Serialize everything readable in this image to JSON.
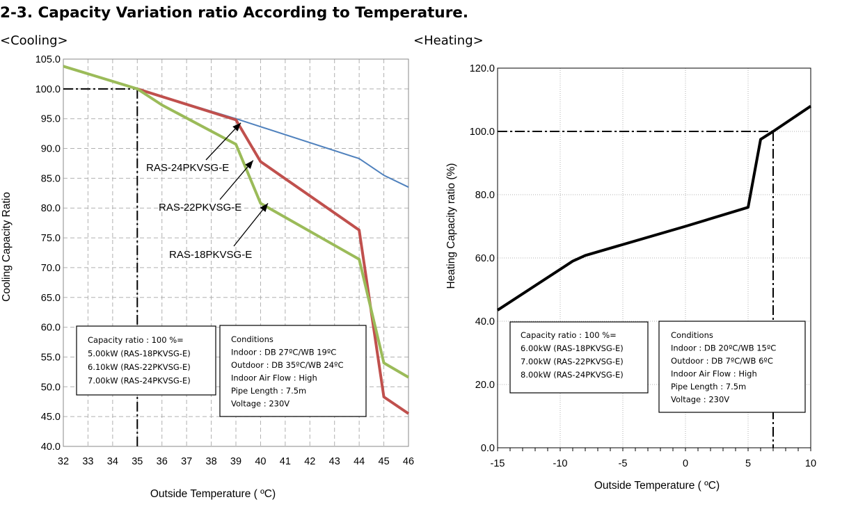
{
  "header": {
    "title": "2-3. Capacity Variation ratio According to Temperature.",
    "cooling_label": "<Cooling>",
    "heating_label": "<Heating>"
  },
  "chart_data": [
    {
      "type": "line",
      "title": "<Cooling>",
      "xlabel": "Outside Temperature ( ºC)",
      "ylabel": "Cooling Capacity Ratio",
      "xlim": [
        32,
        46
      ],
      "ylim": [
        40,
        105
      ],
      "x_ticks": [
        32,
        33,
        34,
        35,
        36,
        37,
        38,
        39,
        40,
        41,
        42,
        43,
        44,
        45,
        46
      ],
      "y_ticks": [
        40.0,
        45.0,
        50.0,
        55.0,
        60.0,
        65.0,
        70.0,
        75.0,
        80.0,
        85.0,
        90.0,
        95.0,
        100.0,
        105.0
      ],
      "y_tick_labels": [
        "40.0",
        "45.0",
        "50.0",
        "55.0",
        "60.0",
        "65.0",
        "70.0",
        "75.0",
        "80.0",
        "85.0",
        "90.0",
        "95.0",
        "100.0",
        "105.0"
      ],
      "grid": true,
      "reference_lines": {
        "x": 35,
        "y": 100
      },
      "series": [
        {
          "name": "RAS-24PKVSG-E",
          "color": "#4f81bd",
          "points": [
            [
              32,
              103.8
            ],
            [
              35,
              100.0
            ],
            [
              39,
              95.0
            ],
            [
              44,
              88.3
            ],
            [
              45,
              85.5
            ],
            [
              46,
              83.5
            ]
          ]
        },
        {
          "name": "RAS-22PKVSG-E",
          "color": "#c0504d",
          "points": [
            [
              35,
              100.0
            ],
            [
              39,
              94.8
            ],
            [
              40,
              87.8
            ],
            [
              44,
              76.3
            ],
            [
              45,
              48.3
            ],
            [
              46,
              45.5
            ]
          ]
        },
        {
          "name": "RAS-18PKVSG-E",
          "color": "#9bbb59",
          "points": [
            [
              32,
              103.8
            ],
            [
              35,
              100.0
            ],
            [
              36,
              97.3
            ],
            [
              39,
              90.7
            ],
            [
              40,
              80.8
            ],
            [
              44,
              71.4
            ],
            [
              45,
              54.0
            ],
            [
              46,
              51.6
            ]
          ]
        }
      ],
      "annotations": [
        {
          "text": "RAS-24PKVSG-E",
          "points_to": [
            39.2,
            94.3
          ]
        },
        {
          "text": "RAS-22PKVSG-E",
          "points_to": [
            39.7,
            88.0
          ]
        },
        {
          "text": "RAS-18PKVSG-E",
          "points_to": [
            40.3,
            80.8
          ]
        }
      ],
      "boxes": [
        {
          "lines": [
            "Capacity ratio : 100 %=",
            "5.00kW (RAS-18PKVSG-E)",
            "6.10kW (RAS-22PKVSG-E)",
            "7.00kW (RAS-24PKVSG-E)"
          ]
        },
        {
          "lines": [
            "Conditions",
            "Indoor : DB 27ºC/WB 19ºC",
            "Outdoor : DB 35ºC/WB 24ºC",
            "Indoor Air Flow : High",
            "Pipe Length : 7.5m",
            "Voltage : 230V"
          ]
        }
      ]
    },
    {
      "type": "line",
      "title": "<Heating>",
      "xlabel": "Outside Temperature ( ºC)",
      "ylabel": "Heating Capacity ratio (%)",
      "xlim": [
        -15,
        10
      ],
      "ylim": [
        0,
        120
      ],
      "x_ticks": [
        -15,
        -10,
        -5,
        0,
        5,
        10
      ],
      "x_tick_labels": [
        "-15",
        "-10",
        "-5",
        "0",
        "5",
        "10"
      ],
      "y_ticks": [
        0,
        20,
        40,
        60,
        80,
        100,
        120
      ],
      "y_tick_labels": [
        "0.0",
        "20.0",
        "40.0",
        "60.0",
        "80.0",
        "100.0",
        "120.0"
      ],
      "grid": true,
      "reference_lines": {
        "x": 7,
        "y": 100
      },
      "series": [
        {
          "name": "",
          "color": "#000000",
          "points": [
            [
              -15,
              43.5
            ],
            [
              -9,
              59.0
            ],
            [
              -8,
              60.8
            ],
            [
              0,
              70.0
            ],
            [
              5,
              76.0
            ],
            [
              6,
              97.5
            ],
            [
              7,
              100.0
            ],
            [
              10,
              108.0
            ]
          ]
        }
      ],
      "boxes": [
        {
          "lines": [
            "Capacity ratio : 100 %=",
            "6.00kW (RAS-18PKVSG-E)",
            "7.00kW (RAS-22PKVSG-E)",
            "8.00kW (RAS-24PKVSG-E)"
          ]
        },
        {
          "lines": [
            "Conditions",
            "Indoor : DB 20ºC/WB 15ºC",
            "Outdoor : DB 7ºC/WB 6ºC",
            "Indoor Air Flow : High",
            "Pipe Length : 7.5m",
            "Voltage : 230V"
          ]
        }
      ]
    }
  ]
}
